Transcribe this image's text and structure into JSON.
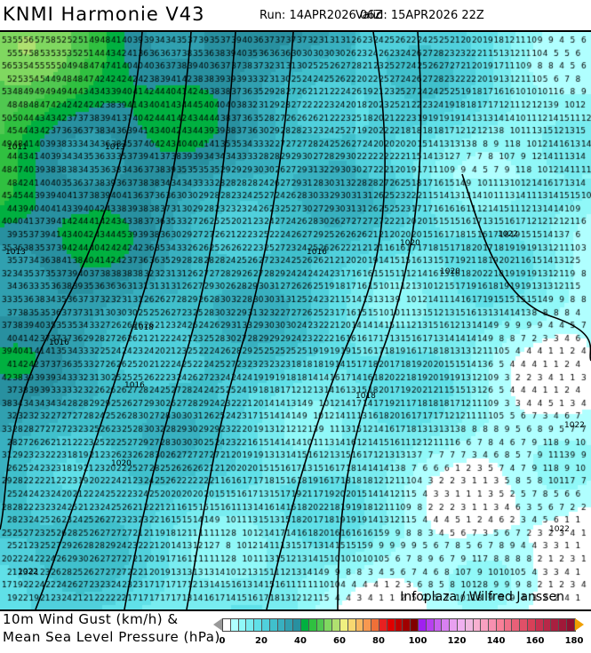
{
  "header": {
    "title": "KNMI Harmonie V43",
    "run": "Run: 14APR2026 06Z",
    "valid": "Valid: 15APR2026 22Z"
  },
  "legend": {
    "line1": "10m Wind Gust (km/h) &",
    "line2": "Mean Sea Level Pressure (hPa)",
    "unit_min": 0,
    "unit_max": 180,
    "ticks": [
      "0",
      "20",
      "40",
      "60",
      "80",
      "100",
      "120",
      "140",
      "160",
      "180"
    ],
    "colors": [
      "#ffffff",
      "#b0ffff",
      "#90f8f8",
      "#78ecf0",
      "#60e0e8",
      "#50d0dc",
      "#40c0cc",
      "#38b0c0",
      "#30a0b0",
      "#2890a0",
      "#00b040",
      "#30c040",
      "#50c850",
      "#80d860",
      "#b0e070",
      "#f0f080",
      "#f8d870",
      "#f8b860",
      "#f89850",
      "#f07038",
      "#e82020",
      "#e00000",
      "#c00000",
      "#a00000",
      "#800000",
      "#a020f0",
      "#b840f0",
      "#c860f0",
      "#d880f0",
      "#e8a0f0",
      "#f0b0f0",
      "#f0b8e0",
      "#f8b0d0",
      "#f8a0c0",
      "#f890b0",
      "#f88098",
      "#f07088",
      "#e86078",
      "#e05068",
      "#d84058",
      "#c83050",
      "#b82848",
      "#a82040",
      "#a01838",
      "#901030"
    ]
  },
  "map": {
    "credit": "Infoplaza / Wilfred Janssen",
    "isobar_labels": [
      "1011",
      "1013",
      "1013",
      "1016",
      "1016",
      "1016",
      "1018",
      "1018",
      "1020",
      "1020",
      "1020",
      "1022",
      "1022",
      "1022",
      "1022"
    ]
  }
}
